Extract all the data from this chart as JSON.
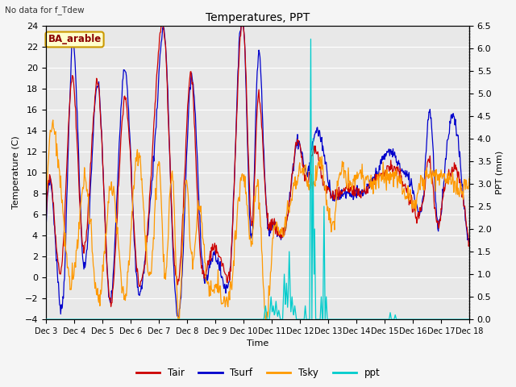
{
  "title": "Temperatures, PPT",
  "note": "No data for f_Tdew",
  "location_label": "BA_arable",
  "xlabel": "Time",
  "ylabel_left": "Temperature (C)",
  "ylabel_right": "PPT (mm)",
  "ylim_left": [
    -4,
    24
  ],
  "ylim_right": [
    0.0,
    6.5
  ],
  "yticks_left": [
    -4,
    -2,
    0,
    2,
    4,
    6,
    8,
    10,
    12,
    14,
    16,
    18,
    20,
    22,
    24
  ],
  "yticks_right": [
    0.0,
    0.5,
    1.0,
    1.5,
    2.0,
    2.5,
    3.0,
    3.5,
    4.0,
    4.5,
    5.0,
    5.5,
    6.0,
    6.5
  ],
  "xtick_labels": [
    "Dec 3",
    "Dec 4",
    "Dec 5",
    "Dec 6",
    "Dec 7",
    "Dec 8",
    "Dec 9",
    "Dec 10",
    "Dec 11",
    "Dec 12",
    "Dec 13",
    "Dec 14",
    "Dec 15",
    "Dec 16",
    "Dec 17",
    "Dec 18"
  ],
  "colors": {
    "Tair": "#cc0000",
    "Tsurf": "#0000cc",
    "Tsky": "#ff9900",
    "ppt": "#00cccc",
    "background": "#e8e8e8",
    "grid": "#ffffff",
    "location_box_fill": "#ffffcc",
    "location_box_edge": "#cc9900"
  },
  "n_days": 16,
  "figsize": [
    6.4,
    4.8
  ],
  "dpi": 100
}
